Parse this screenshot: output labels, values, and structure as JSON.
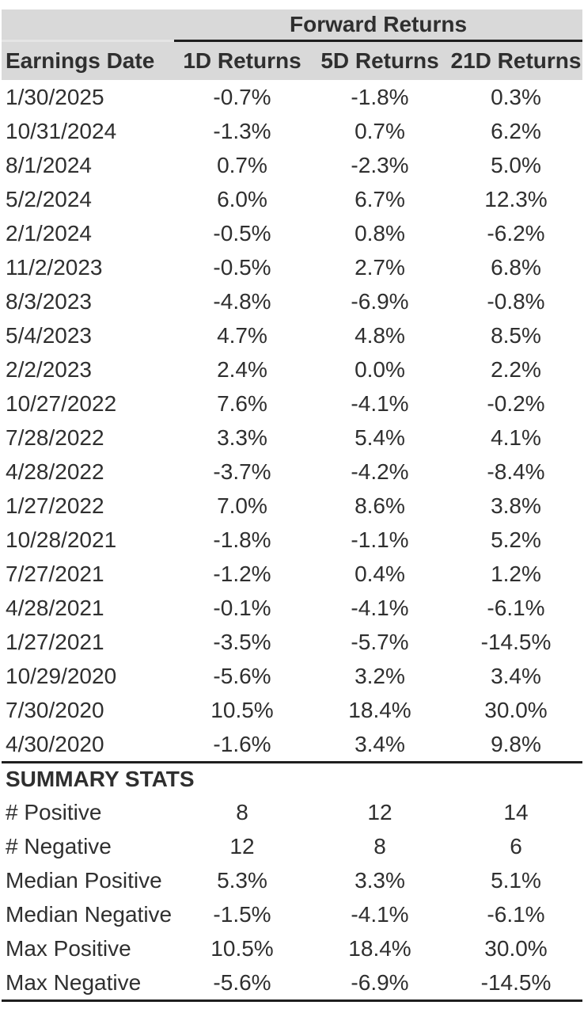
{
  "chart_data": {
    "type": "table",
    "group_header": "Forward Returns",
    "columns": [
      "Earnings Date",
      "1D Returns",
      "5D Returns",
      "21D Returns"
    ],
    "rows": [
      [
        "1/30/2025",
        "-0.7%",
        "-1.8%",
        "0.3%"
      ],
      [
        "10/31/2024",
        "-1.3%",
        "0.7%",
        "6.2%"
      ],
      [
        "8/1/2024",
        "0.7%",
        "-2.3%",
        "5.0%"
      ],
      [
        "5/2/2024",
        "6.0%",
        "6.7%",
        "12.3%"
      ],
      [
        "2/1/2024",
        "-0.5%",
        "0.8%",
        "-6.2%"
      ],
      [
        "11/2/2023",
        "-0.5%",
        "2.7%",
        "6.8%"
      ],
      [
        "8/3/2023",
        "-4.8%",
        "-6.9%",
        "-0.8%"
      ],
      [
        "5/4/2023",
        "4.7%",
        "4.8%",
        "8.5%"
      ],
      [
        "2/2/2023",
        "2.4%",
        "0.0%",
        "2.2%"
      ],
      [
        "10/27/2022",
        "7.6%",
        "-4.1%",
        "-0.2%"
      ],
      [
        "7/28/2022",
        "3.3%",
        "5.4%",
        "4.1%"
      ],
      [
        "4/28/2022",
        "-3.7%",
        "-4.2%",
        "-8.4%"
      ],
      [
        "1/27/2022",
        "7.0%",
        "8.6%",
        "3.8%"
      ],
      [
        "10/28/2021",
        "-1.8%",
        "-1.1%",
        "5.2%"
      ],
      [
        "7/27/2021",
        "-1.2%",
        "0.4%",
        "1.2%"
      ],
      [
        "4/28/2021",
        "-0.1%",
        "-4.1%",
        "-6.1%"
      ],
      [
        "1/27/2021",
        "-3.5%",
        "-5.7%",
        "-14.5%"
      ],
      [
        "10/29/2020",
        "-5.6%",
        "3.2%",
        "3.4%"
      ],
      [
        "7/30/2020",
        "10.5%",
        "18.4%",
        "30.0%"
      ],
      [
        "4/30/2020",
        "-1.6%",
        "3.4%",
        "9.8%"
      ]
    ],
    "summary_title": "SUMMARY STATS",
    "summary_rows": [
      [
        "# Positive",
        "8",
        "12",
        "14"
      ],
      [
        "# Negative",
        "12",
        "8",
        "6"
      ],
      [
        "Median Positive",
        "5.3%",
        "3.3%",
        "5.1%"
      ],
      [
        "Median Negative",
        "-1.5%",
        "-4.1%",
        "-6.1%"
      ],
      [
        "Max Positive",
        "10.5%",
        "18.4%",
        "30.0%"
      ],
      [
        "Max Negative",
        "-5.6%",
        "-6.9%",
        "-14.5%"
      ]
    ]
  },
  "colors": {
    "header_bg": "#d9d9d9",
    "text": "#2f2f2f",
    "rule": "#1f1f1f"
  }
}
